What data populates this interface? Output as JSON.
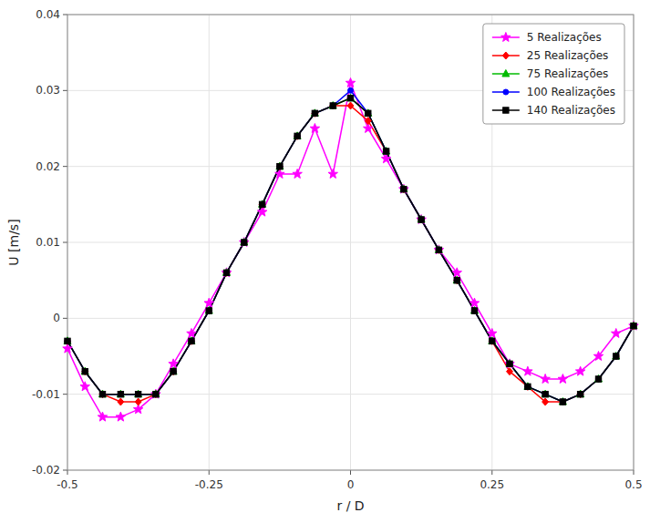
{
  "chart_data": {
    "type": "line",
    "xlabel": "r / D",
    "ylabel": "U [m/s]",
    "x": [
      -0.5,
      -0.469,
      -0.438,
      -0.406,
      -0.375,
      -0.344,
      -0.313,
      -0.281,
      -0.25,
      -0.219,
      -0.188,
      -0.156,
      -0.125,
      -0.094,
      -0.063,
      -0.031,
      0,
      0.031,
      0.063,
      0.094,
      0.125,
      0.156,
      0.188,
      0.219,
      0.25,
      0.281,
      0.313,
      0.344,
      0.375,
      0.406,
      0.438,
      0.469,
      0.5
    ],
    "series": [
      {
        "name": "5 Realizações",
        "color": "#ff00ff",
        "marker": "star",
        "values": [
          -0.004,
          -0.009,
          -0.013,
          -0.013,
          -0.012,
          -0.01,
          -0.006,
          -0.002,
          0.002,
          0.006,
          0.01,
          0.014,
          0.019,
          0.019,
          0.025,
          0.019,
          0.031,
          0.025,
          0.021,
          0.017,
          0.013,
          0.009,
          0.006,
          0.002,
          -0.002,
          -0.006,
          -0.007,
          -0.008,
          -0.008,
          -0.007,
          -0.005,
          -0.002,
          -0.001
        ]
      },
      {
        "name": "25 Realizações",
        "color": "#ff0000",
        "marker": "diamond",
        "values": [
          -0.003,
          -0.007,
          -0.01,
          -0.011,
          -0.011,
          -0.01,
          -0.007,
          -0.003,
          0.001,
          0.006,
          0.01,
          0.015,
          0.02,
          0.024,
          0.027,
          0.028,
          0.028,
          0.026,
          0.022,
          0.017,
          0.013,
          0.009,
          0.005,
          0.001,
          -0.003,
          -0.007,
          -0.009,
          -0.011,
          -0.011,
          -0.01,
          -0.008,
          -0.005,
          -0.001
        ]
      },
      {
        "name": "75 Realizações",
        "color": "#00bb00",
        "marker": "triangle",
        "values": [
          -0.003,
          -0.007,
          -0.01,
          -0.01,
          -0.01,
          -0.01,
          -0.007,
          -0.003,
          0.001,
          0.006,
          0.01,
          0.015,
          0.02,
          0.024,
          0.027,
          0.028,
          0.029,
          0.027,
          0.022,
          0.017,
          0.013,
          0.009,
          0.005,
          0.001,
          -0.003,
          -0.006,
          -0.009,
          -0.01,
          -0.011,
          -0.01,
          -0.008,
          -0.005,
          -0.001
        ]
      },
      {
        "name": "100 Realizações",
        "color": "#0000ff",
        "marker": "circle",
        "values": [
          -0.003,
          -0.007,
          -0.01,
          -0.01,
          -0.01,
          -0.01,
          -0.007,
          -0.003,
          0.001,
          0.006,
          0.01,
          0.015,
          0.02,
          0.024,
          0.027,
          0.028,
          0.03,
          0.027,
          0.022,
          0.017,
          0.013,
          0.009,
          0.005,
          0.001,
          -0.003,
          -0.006,
          -0.009,
          -0.01,
          -0.011,
          -0.01,
          -0.008,
          -0.005,
          -0.001
        ]
      },
      {
        "name": "140 Realizações",
        "color": "#000000",
        "marker": "square",
        "values": [
          -0.003,
          -0.007,
          -0.01,
          -0.01,
          -0.01,
          -0.01,
          -0.007,
          -0.003,
          0.001,
          0.006,
          0.01,
          0.015,
          0.02,
          0.024,
          0.027,
          0.028,
          0.029,
          0.027,
          0.022,
          0.017,
          0.013,
          0.009,
          0.005,
          0.001,
          -0.003,
          -0.006,
          -0.009,
          -0.01,
          -0.011,
          -0.01,
          -0.008,
          -0.005,
          -0.001
        ]
      }
    ],
    "xlim": [
      -0.5,
      0.5
    ],
    "ylim": [
      -0.02,
      0.04
    ],
    "xticks": [
      -0.5,
      -0.25,
      0,
      0.25,
      0.5
    ],
    "yticks": [
      -0.02,
      -0.01,
      0,
      0.01,
      0.02,
      0.03,
      0.04
    ],
    "grid": true,
    "legend": "upper right"
  }
}
